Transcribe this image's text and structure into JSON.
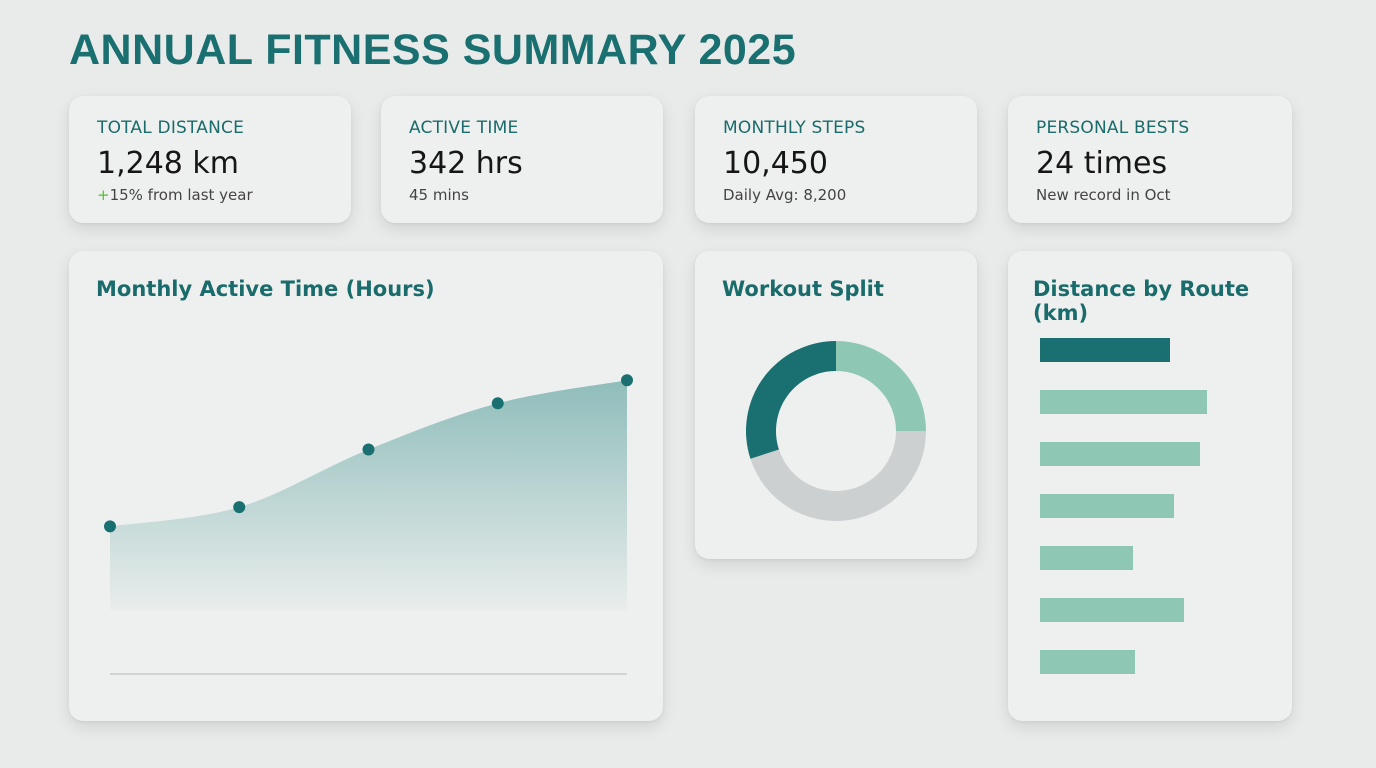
{
  "page_title": "ANNUAL FITNESS SUMMARY 2025",
  "colors": {
    "accent": "#1a7070",
    "light": "#8fc7b5",
    "grey": "#cdd0d1",
    "positive": "#56c02b"
  },
  "stats": [
    {
      "label": "TOTAL DISTANCE",
      "value": "1,248 km",
      "sub_prefix": "+",
      "sub": "15% from last year"
    },
    {
      "label": "ACTIVE TIME",
      "value": "342 hrs",
      "sub_prefix": "",
      "sub": "45 mins"
    },
    {
      "label": "MONTHLY STEPS",
      "value": "10,450",
      "sub_prefix": "",
      "sub": "Daily Avg: 8,200"
    },
    {
      "label": "PERSONAL BESTS",
      "value": "24 times",
      "sub_prefix": "",
      "sub": "New record in Oct"
    }
  ],
  "panels": {
    "area_title": "Monthly Active Time (Hours)",
    "donut_title": "Workout Split",
    "bars_title": "Distance by Route (km)"
  },
  "chart_data": [
    {
      "type": "area",
      "title": "Monthly Active Time (Hours)",
      "x": [
        1,
        2,
        3,
        4,
        5
      ],
      "values": [
        22,
        27,
        42,
        54,
        60
      ],
      "ylim": [
        0,
        65
      ],
      "grid": false,
      "colors": {
        "point": "#1a7070",
        "fill_top": "#8fbdba"
      }
    },
    {
      "type": "pie",
      "title": "Workout Split",
      "values": [
        30,
        25,
        45
      ],
      "colors": [
        "#1a7070",
        "#8fc7b5",
        "#cdd0d1"
      ],
      "start_angle_deg": 0,
      "order": [
        "light",
        "grey",
        "accent"
      ]
    },
    {
      "type": "bar",
      "orientation": "horizontal",
      "title": "Distance by Route (km)",
      "values": [
        130,
        167,
        160,
        134,
        93,
        144,
        95
      ],
      "highlight_index": 0,
      "colors": {
        "highlight": "#1a7070",
        "normal": "#8fc7b5"
      }
    }
  ]
}
